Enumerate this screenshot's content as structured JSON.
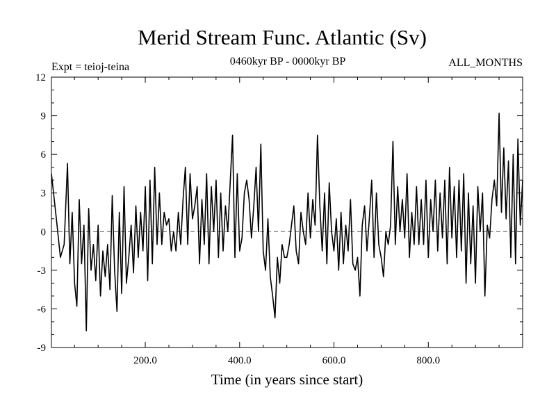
{
  "chart_data": {
    "type": "line",
    "title": "Merid Stream Func. Atlantic (Sv)",
    "subtitle_left": "Expt = teioj-teina",
    "subtitle_center": "0460kyr BP - 0000kyr BP",
    "subtitle_right": "ALL_MONTHS",
    "xlabel": "Time (in years since start)",
    "ylabel": "",
    "xlim": [
      1,
      1000
    ],
    "ylim": [
      -9,
      12
    ],
    "xticks": [
      200,
      400,
      600,
      800
    ],
    "xtick_labels": [
      "200.0",
      "400.0",
      "600.0",
      "800.0"
    ],
    "yticks": [
      -9,
      -6,
      -3,
      0,
      3,
      6,
      9,
      12
    ],
    "ytick_labels": [
      "-9",
      "-6",
      "-3",
      "0",
      "3",
      "6",
      "9",
      "12"
    ],
    "zero_line": "dashed",
    "grid": false,
    "series": [
      {
        "x": [
          1,
          12,
          20,
          28,
          35,
          40,
          45,
          50,
          55,
          60,
          65,
          70,
          75,
          80,
          85,
          90,
          95,
          100,
          105,
          110,
          115,
          120,
          125,
          130,
          135,
          140,
          145,
          150,
          155,
          160,
          165,
          170,
          175,
          180,
          185,
          190,
          195,
          200,
          205,
          210,
          215,
          220,
          225,
          230,
          235,
          240,
          245,
          250,
          255,
          260,
          265,
          270,
          275,
          280,
          285,
          290,
          295,
          300,
          305,
          310,
          315,
          320,
          325,
          330,
          335,
          340,
          345,
          350,
          355,
          360,
          365,
          370,
          375,
          380,
          385,
          390,
          395,
          400,
          405,
          410,
          415,
          420,
          425,
          430,
          435,
          440,
          445,
          450,
          455,
          460,
          465,
          470,
          475,
          480,
          485,
          490,
          495,
          500,
          505,
          510,
          515,
          520,
          525,
          530,
          535,
          540,
          545,
          550,
          555,
          560,
          565,
          570,
          575,
          580,
          585,
          590,
          595,
          600,
          605,
          610,
          615,
          620,
          625,
          630,
          635,
          640,
          645,
          650,
          655,
          660,
          665,
          670,
          675,
          680,
          685,
          690,
          695,
          700,
          705,
          710,
          715,
          720,
          725,
          730,
          735,
          740,
          745,
          750,
          755,
          760,
          765,
          770,
          775,
          780,
          785,
          790,
          795,
          800,
          805,
          810,
          815,
          820,
          825,
          830,
          835,
          840,
          845,
          850,
          855,
          860,
          865,
          870,
          875,
          880,
          885,
          890,
          895,
          900,
          905,
          910,
          915,
          920,
          925,
          930,
          935,
          940,
          945,
          950,
          955,
          960,
          965,
          970,
          975,
          980,
          985,
          990,
          995,
          1000
        ],
        "y": [
          4.5,
          0.8,
          -2.0,
          -1.0,
          5.3,
          -2.5,
          1.5,
          -4.0,
          -5.8,
          2.5,
          -2.5,
          0.5,
          -7.7,
          1.8,
          -3.0,
          -1.0,
          -3.8,
          0.5,
          -5.0,
          -1.5,
          -3.5,
          -1.0,
          -4.5,
          2.8,
          -3.0,
          -6.2,
          1.5,
          -4.8,
          3.5,
          -4.0,
          -2.0,
          0.5,
          -3.2,
          2.0,
          -2.0,
          1.5,
          -1.5,
          3.5,
          -3.8,
          4.0,
          -2.5,
          5.0,
          -1.0,
          3.0,
          -1.0,
          1.5,
          0.5,
          1.0,
          -1.5,
          0.0,
          -1.5,
          1.5,
          -1.0,
          2.5,
          5.0,
          -1.0,
          4.5,
          1.0,
          2.0,
          3.5,
          -2.5,
          2.5,
          -1.0,
          4.5,
          -2.5,
          3.5,
          0.0,
          4.0,
          -2.0,
          3.0,
          -1.5,
          2.0,
          0.0,
          3.8,
          7.5,
          -2.0,
          4.5,
          -1.5,
          -0.5,
          3.0,
          4.0,
          2.5,
          -0.5,
          2.0,
          5.0,
          0.0,
          6.8,
          -1.5,
          -3.0,
          1.0,
          -3.5,
          -5.0,
          -6.7,
          -2.0,
          -4.0,
          -1.0,
          -2.0,
          -2.0,
          -1.0,
          0.5,
          2.0,
          -1.5,
          -2.5,
          1.5,
          0.0,
          -1.0,
          3.0,
          -0.5,
          2.5,
          0.5,
          7.5,
          2.0,
          -1.5,
          3.0,
          -2.5,
          3.8,
          0.0,
          -1.5,
          1.0,
          -3.0,
          1.5,
          -2.5,
          0.5,
          -1.5,
          2.5,
          -2.5,
          -3.0,
          -2.0,
          -5.0,
          0.5,
          2.0,
          -1.5,
          1.0,
          4.0,
          -2.0,
          3.0,
          -1.0,
          -2.0,
          -3.5,
          0.0,
          -1.0,
          0.5,
          7.0,
          -1.0,
          3.5,
          0.0,
          2.5,
          -0.5,
          4.5,
          -2.0,
          1.5,
          -1.0,
          3.5,
          -1.0,
          2.5,
          -1.0,
          4.0,
          -2.0,
          2.5,
          0.0,
          4.0,
          -1.5,
          3.0,
          -0.5,
          4.0,
          -2.5,
          5.0,
          -0.5,
          3.5,
          -2.0,
          4.0,
          -1.5,
          4.5,
          -4.0,
          3.0,
          -2.5,
          2.0,
          -4.0,
          3.5,
          0.0,
          3.0,
          -5.0,
          0.5,
          -0.5,
          2.5,
          4.0,
          2.0,
          9.2,
          1.5,
          6.5,
          1.0,
          5.5,
          -2.0,
          6.0,
          -2.5,
          7.2,
          0.5,
          4.0
        ]
      }
    ]
  }
}
